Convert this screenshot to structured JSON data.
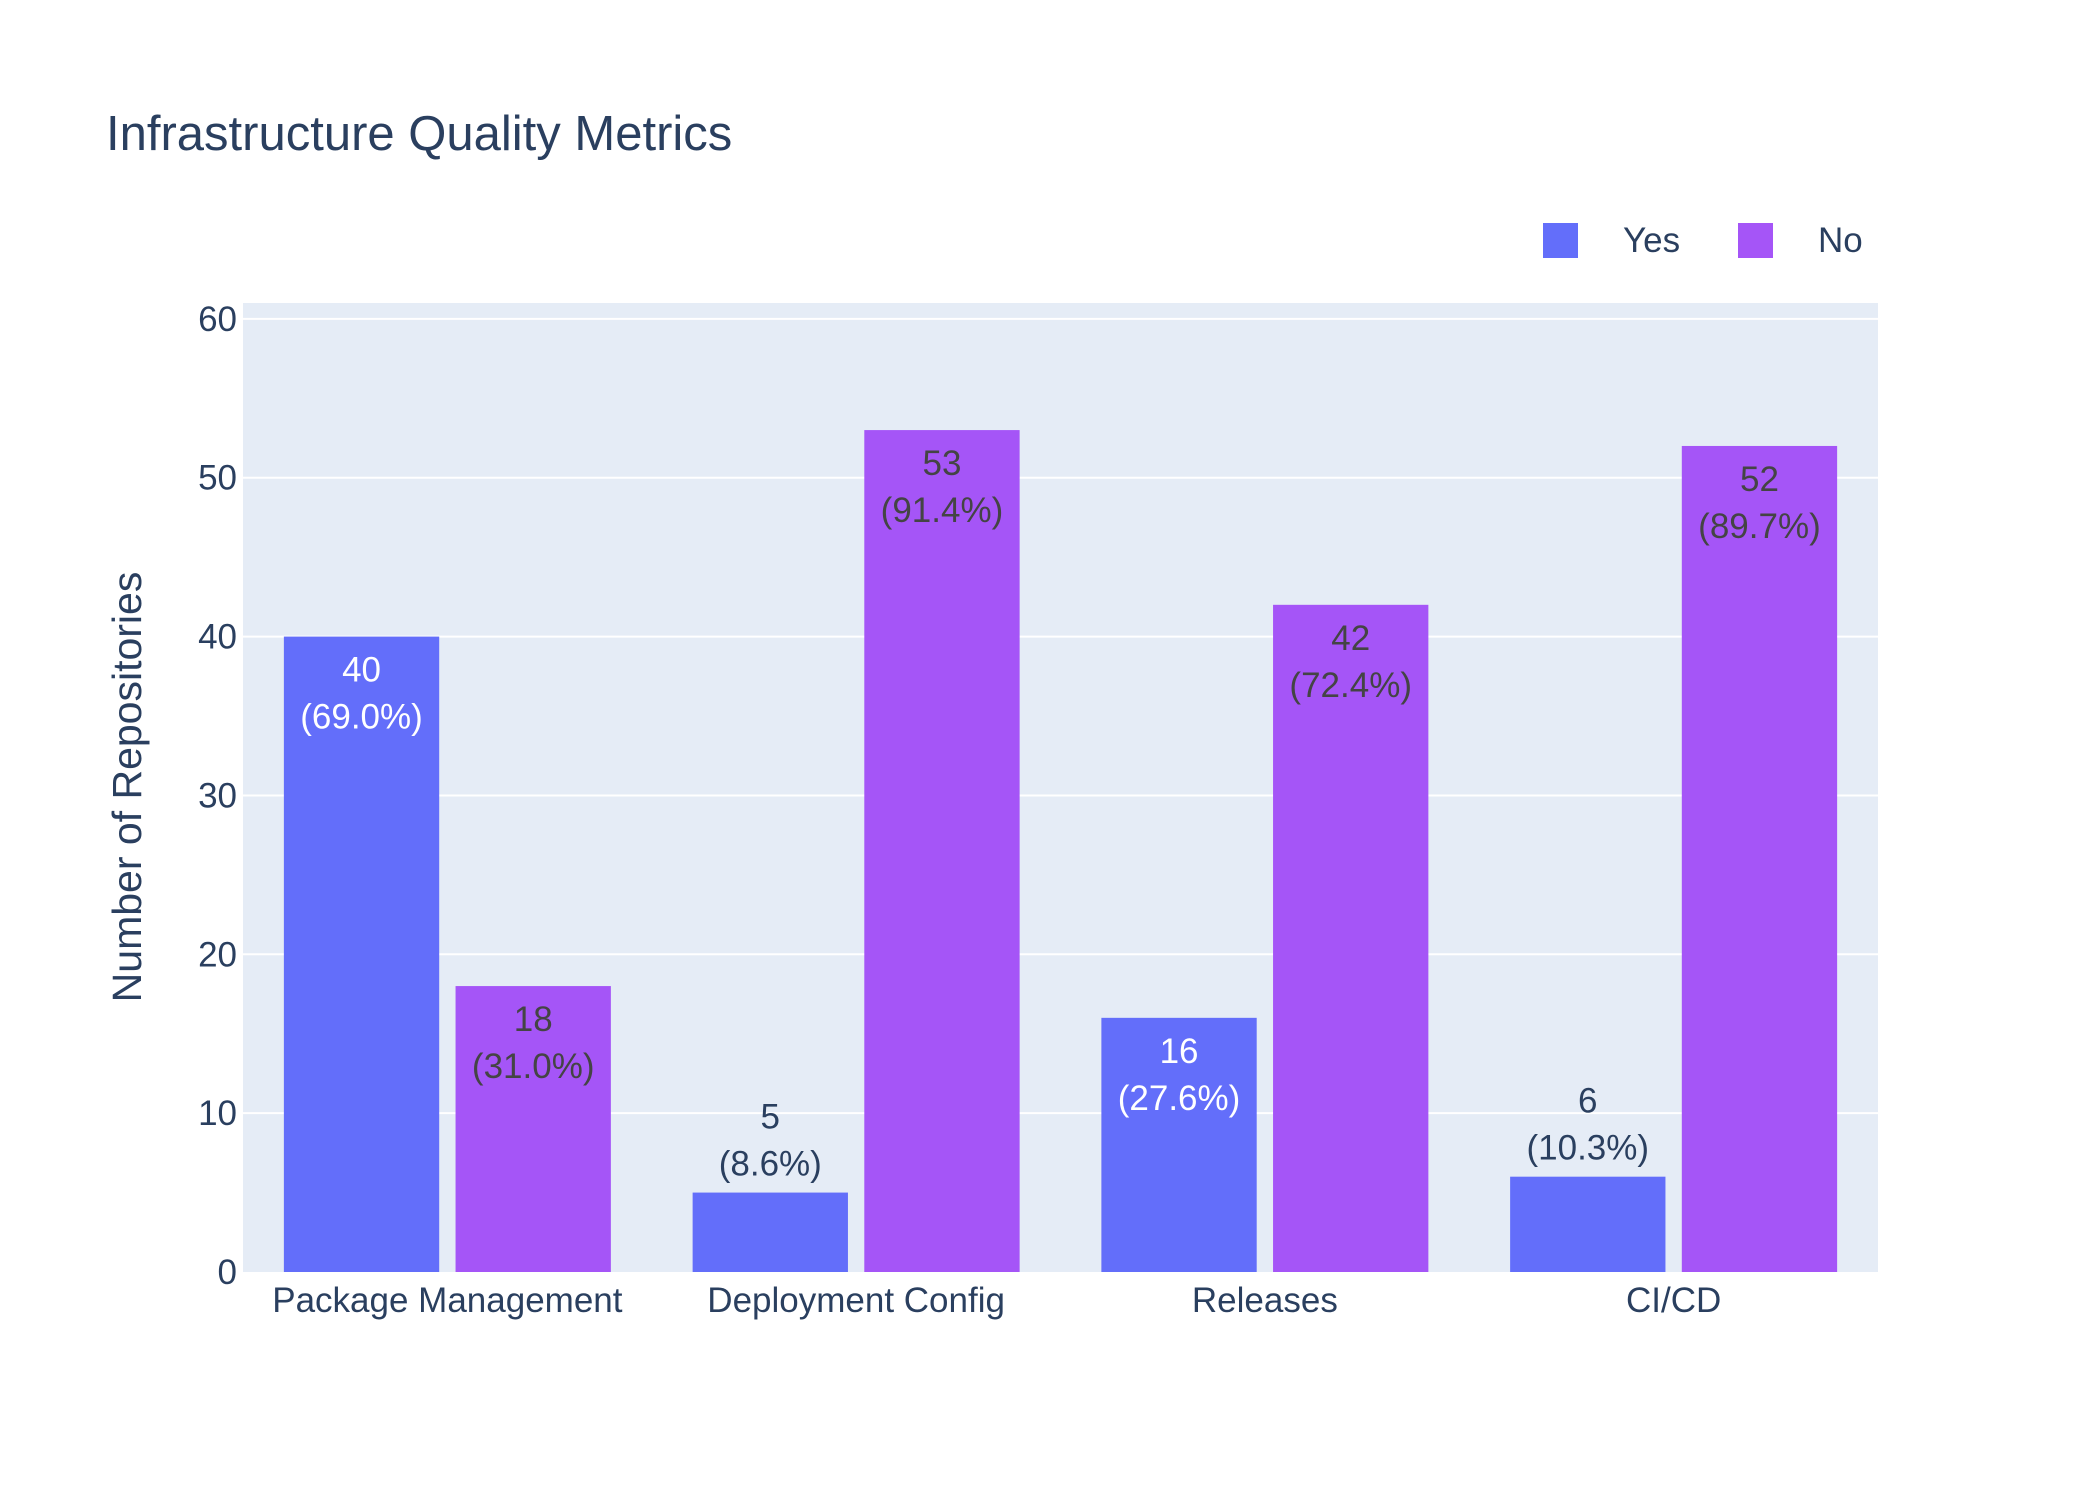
{
  "chart_data": {
    "type": "bar",
    "title": "Infrastructure Quality Metrics",
    "xlabel": "",
    "ylabel": "Number of Repositories",
    "categories": [
      "Package Management",
      "Deployment Config",
      "Releases",
      "CI/CD"
    ],
    "series": [
      {
        "name": "Yes",
        "color": "#636efa",
        "values": [
          40,
          5,
          16,
          6
        ],
        "labels": [
          "(69.0%)",
          "(8.6%)",
          "(27.6%)",
          "(10.3%)"
        ]
      },
      {
        "name": "No",
        "color": "#a555f7",
        "values": [
          18,
          53,
          42,
          52
        ],
        "labels": [
          "(31.0%)",
          "(91.4%)",
          "(72.4%)",
          "(89.7%)"
        ]
      }
    ],
    "ylim": [
      0,
      61
    ],
    "yticks": [
      0,
      10,
      20,
      30,
      40,
      50,
      60
    ],
    "grid": true,
    "legend": "top-right",
    "plot_background": "#e5ecf6"
  }
}
